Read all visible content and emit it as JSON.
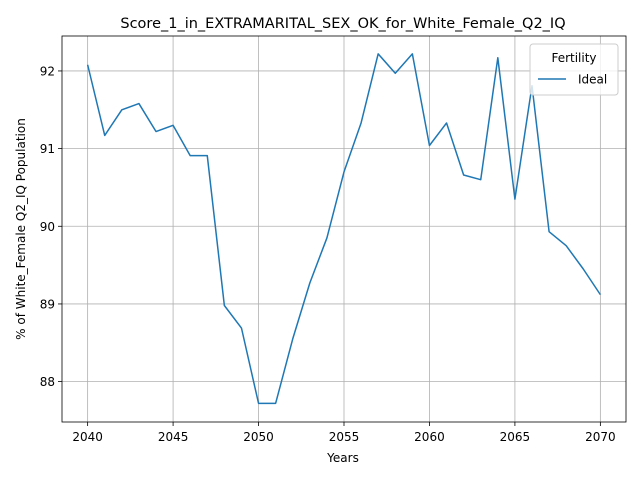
{
  "chart_data": {
    "type": "line",
    "title": "Score_1_in_EXTRAMARITAL_SEX_OK_for_White_Female_Q2_IQ",
    "xlabel": "Years",
    "ylabel": "% of White_Female Q2_IQ Population",
    "xlim": [
      2038.5,
      2071.5
    ],
    "ylim": [
      87.48,
      92.45
    ],
    "xticks": [
      2040,
      2045,
      2050,
      2055,
      2060,
      2065,
      2070
    ],
    "yticks": [
      88,
      89,
      90,
      91,
      92
    ],
    "grid": true,
    "legend": {
      "title": "Fertility",
      "position": "top-right"
    },
    "series": [
      {
        "name": "Ideal",
        "color": "#1f77b4",
        "x": [
          2040,
          2041,
          2042,
          2043,
          2044,
          2045,
          2046,
          2047,
          2048,
          2049,
          2050,
          2051,
          2052,
          2053,
          2054,
          2055,
          2056,
          2057,
          2058,
          2059,
          2060,
          2061,
          2062,
          2063,
          2064,
          2065,
          2066,
          2067,
          2068,
          2069,
          2070
        ],
        "values": [
          92.08,
          91.17,
          91.5,
          91.58,
          91.22,
          91.3,
          90.91,
          90.91,
          88.98,
          88.69,
          87.72,
          87.72,
          88.55,
          89.27,
          89.85,
          90.7,
          91.33,
          92.22,
          91.97,
          92.22,
          91.04,
          91.33,
          90.66,
          90.6,
          92.17,
          90.35,
          91.81,
          89.93,
          89.75,
          89.45,
          89.12
        ]
      }
    ]
  }
}
